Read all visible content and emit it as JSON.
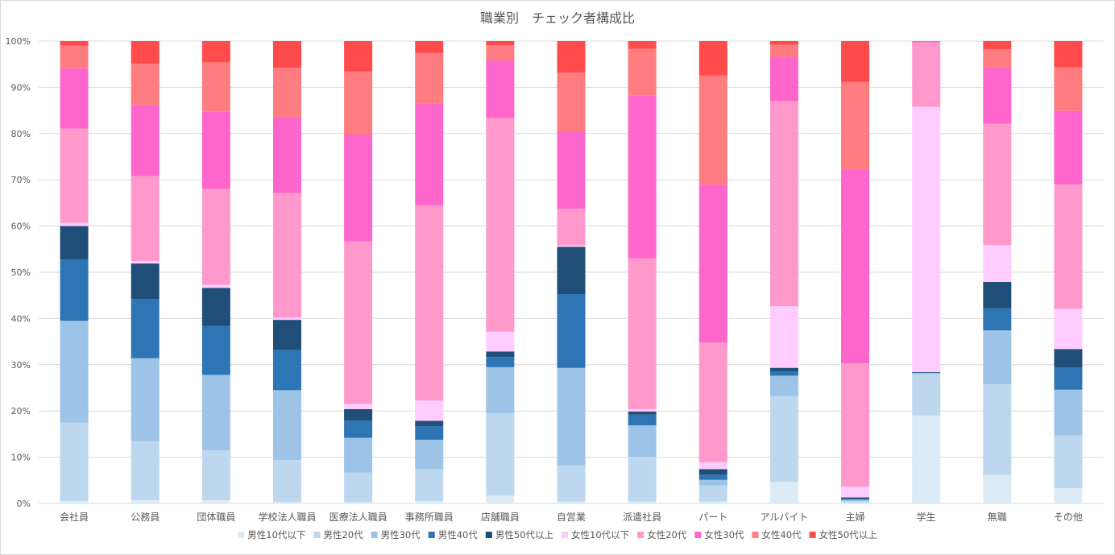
{
  "chart_data": {
    "type": "bar",
    "stacked": true,
    "percent": true,
    "title": "職業別　チェック者構成比",
    "ylim": [
      0,
      100
    ],
    "yticks": [
      "0%",
      "10%",
      "20%",
      "30%",
      "40%",
      "50%",
      "60%",
      "70%",
      "80%",
      "90%",
      "100%"
    ],
    "grid": true,
    "legend_position": "bottom",
    "categories": [
      "会社員",
      "公務員",
      "団体職員",
      "学校法人職員",
      "医療法人職員",
      "事務所職員",
      "店舗職員",
      "自営業",
      "派遣社員",
      "パート",
      "アルバイト",
      "主婦",
      "学生",
      "無職",
      "その他"
    ],
    "series": [
      {
        "name": "男性10代以下",
        "color": "#DDEBF7",
        "values": [
          0.5,
          0.7,
          0.7,
          0.3,
          0.3,
          0.5,
          1.7,
          0.4,
          0.4,
          0.4,
          4.7,
          0.2,
          19.0,
          6.2,
          3.3
        ]
      },
      {
        "name": "男性20代",
        "color": "#BDD7EE",
        "values": [
          17.0,
          12.8,
          10.8,
          9.1,
          6.4,
          7.0,
          17.9,
          7.8,
          9.7,
          3.5,
          18.5,
          0.3,
          9.0,
          19.6,
          11.4
        ]
      },
      {
        "name": "男性30代",
        "color": "#9DC3E6",
        "values": [
          22.0,
          17.9,
          16.3,
          15.1,
          7.5,
          6.3,
          10.0,
          21.1,
          6.8,
          1.2,
          4.4,
          0.3,
          0.2,
          11.7,
          9.9
        ]
      },
      {
        "name": "男性40代",
        "color": "#2E75B6",
        "values": [
          13.3,
          12.8,
          10.6,
          8.7,
          3.7,
          2.9,
          2.2,
          16.0,
          2.3,
          1.1,
          0.9,
          0.2,
          0.1,
          4.8,
          4.8
        ]
      },
      {
        "name": "男性50代以上",
        "color": "#1F4E79",
        "values": [
          7.2,
          7.7,
          8.2,
          6.5,
          2.5,
          1.2,
          1.2,
          10.2,
          0.7,
          1.2,
          0.8,
          0.3,
          0.1,
          5.7,
          4.0
        ]
      },
      {
        "name": "女性10代以下",
        "color": "#FFCCFF",
        "values": [
          0.7,
          0.5,
          0.7,
          0.5,
          1.1,
          4.4,
          4.3,
          0.3,
          0.5,
          1.5,
          13.3,
          2.3,
          57.4,
          8.0,
          8.7
        ]
      },
      {
        "name": "女性20代",
        "color": "#FF99CC",
        "values": [
          20.4,
          18.4,
          20.7,
          26.9,
          35.2,
          42.3,
          46.4,
          7.9,
          32.6,
          25.9,
          44.3,
          26.7,
          13.9,
          26.3,
          26.9
        ]
      },
      {
        "name": "女性30代",
        "color": "#FF66CC",
        "values": [
          13.0,
          15.3,
          16.8,
          16.5,
          23.1,
          22.1,
          12.5,
          16.7,
          35.2,
          34.1,
          9.6,
          41.9,
          0.3,
          12.2,
          15.9
        ]
      },
      {
        "name": "女性40代",
        "color": "#FF7C80",
        "values": [
          4.9,
          9.0,
          10.6,
          10.6,
          13.6,
          10.9,
          3.3,
          12.8,
          10.1,
          23.6,
          2.6,
          19.0,
          0.0,
          3.9,
          9.4
        ]
      },
      {
        "name": "女性50代以上",
        "color": "#FF4B4B",
        "values": [
          1.0,
          4.9,
          4.6,
          5.8,
          6.6,
          2.6,
          0.9,
          6.8,
          1.7,
          7.4,
          0.8,
          8.8,
          0.0,
          1.8,
          5.7
        ]
      }
    ]
  }
}
